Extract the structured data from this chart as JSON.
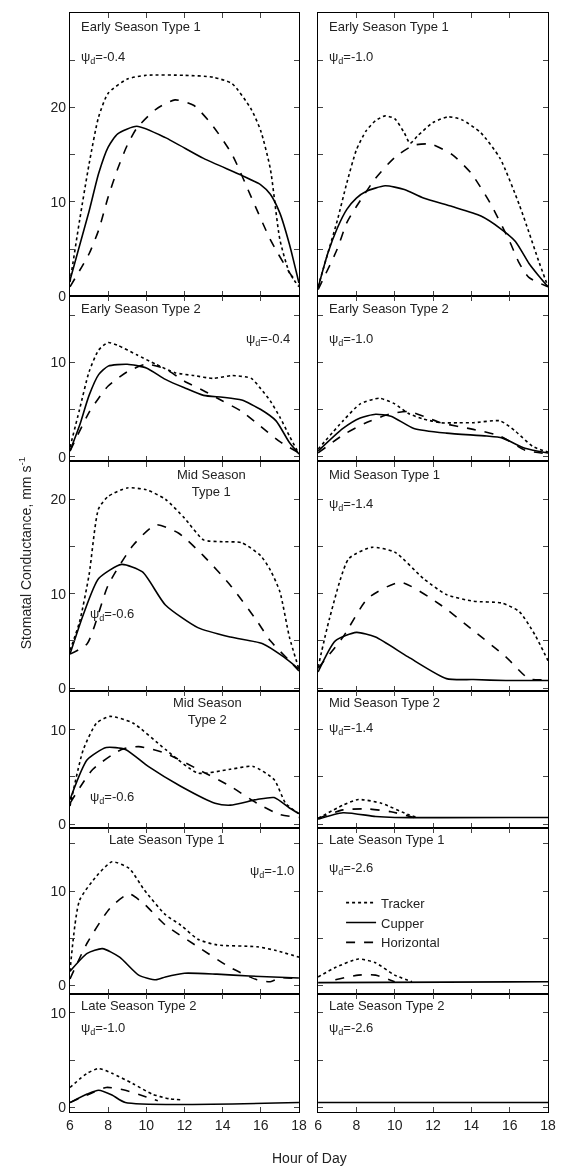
{
  "chart_data": [
    {
      "type": "line",
      "xlim": [
        6,
        18
      ],
      "xticks": [
        6,
        8,
        10,
        12,
        14,
        16,
        18
      ],
      "ylim": [
        0,
        30
      ],
      "yticks": [
        0,
        {
          "value": 5,
          "label": null
        },
        10,
        {
          "value": 15,
          "label": null
        },
        20,
        {
          "value": 25,
          "label": null
        }
      ],
      "tick_labels": "y",
      "annotations": [
        "Early Season Type 1",
        "ψ$_{d}$=-0.4"
      ],
      "series": [
        {
          "color": "#000000",
          "line_style": "dotted",
          "x": [
            6,
            6.5,
            7,
            7.5,
            8,
            9,
            10,
            12,
            13.5,
            14.5,
            15.5,
            16,
            16.5,
            17,
            17.5,
            18
          ],
          "values": [
            1.5,
            8,
            14,
            19,
            21.5,
            23,
            23.4,
            23.4,
            23.2,
            22.5,
            19.8,
            17.5,
            13.5,
            6,
            2.5,
            1
          ]
        },
        {
          "color": "#000000",
          "line_style": "solid",
          "x": [
            6,
            7,
            7.5,
            8,
            8.5,
            9.5,
            11,
            13,
            15,
            16,
            16.5,
            17,
            17.5,
            18
          ],
          "values": [
            1.7,
            9,
            13,
            15.8,
            17.2,
            18,
            16.8,
            14.6,
            12.8,
            11.8,
            10.8,
            8.8,
            5.5,
            1.4
          ]
        },
        {
          "color": "#000000",
          "line_style": "dashed",
          "x": [
            6,
            7,
            7.5,
            8,
            8.5,
            9,
            9.5,
            10.5,
            11.5,
            12.5,
            13.5,
            14.5,
            15.5,
            16.5,
            17.5,
            18
          ],
          "values": [
            1,
            4.5,
            7,
            10.5,
            13.5,
            16,
            17.8,
            19.8,
            20.8,
            20.2,
            18,
            15,
            10.5,
            6,
            2.5,
            1.2
          ]
        }
      ]
    },
    {
      "type": "line",
      "xlim": [
        6,
        18
      ],
      "xticks": [
        6,
        8,
        10,
        12,
        14,
        16,
        18
      ],
      "ylim": [
        0,
        30
      ],
      "yticks": [
        0,
        {
          "value": 5,
          "label": null
        },
        10,
        {
          "value": 15,
          "label": null
        },
        20,
        {
          "value": 25,
          "label": null
        }
      ],
      "tick_labels": false,
      "annotations": [
        "Early Season Type 1",
        "ψ$_{d}$=-1.0"
      ],
      "series": [
        {
          "color": "#000000",
          "line_style": "dotted",
          "x": [
            6,
            6.5,
            7,
            7.5,
            8,
            8.5,
            9,
            9.5,
            10,
            10.5,
            10.8,
            11.2,
            12,
            12.8,
            13.5,
            14.5,
            15.5,
            16.5,
            17,
            17.5,
            18
          ],
          "values": [
            1,
            4.5,
            8,
            12,
            15.5,
            17.5,
            18.6,
            19.1,
            18.8,
            17.3,
            16.2,
            17,
            18.4,
            19,
            18.7,
            17.3,
            14.6,
            9.7,
            6.8,
            3.8,
            1
          ]
        },
        {
          "color": "#000000",
          "line_style": "solid",
          "x": [
            6,
            6.5,
            7,
            7.5,
            8,
            8.5,
            9.5,
            10.5,
            11.5,
            13,
            14.5,
            15.5,
            16.3,
            17,
            17.5,
            18
          ],
          "values": [
            0.9,
            4.5,
            7.2,
            9.2,
            10.4,
            11.1,
            11.7,
            11.3,
            10.4,
            9.5,
            8.5,
            7.2,
            5.8,
            3.5,
            2.2,
            1
          ]
        },
        {
          "color": "#000000",
          "line_style": "dashed",
          "x": [
            6,
            7,
            7.5,
            8,
            9,
            10,
            11,
            11.9,
            13,
            14,
            15,
            16,
            16.5,
            17,
            18
          ],
          "values": [
            0.7,
            5,
            7.8,
            9.5,
            12.5,
            14.7,
            16,
            16.1,
            15,
            13,
            9.8,
            5.8,
            3.5,
            2,
            1
          ]
        }
      ]
    },
    {
      "type": "line",
      "xlim": [
        6,
        18
      ],
      "xticks": [
        6,
        8,
        10,
        12,
        14,
        16,
        18
      ],
      "ylim": [
        -0.5,
        17
      ],
      "yticks": [
        0,
        {
          "value": 5,
          "label": null
        },
        10,
        {
          "value": 15,
          "label": null
        }
      ],
      "tick_labels": "y",
      "annotations": [
        "Early Season Type 2",
        "ψ$_{d}$=-0.4"
      ],
      "series": [
        {
          "color": "#000000",
          "line_style": "dotted",
          "x": [
            6,
            6.5,
            7,
            7.5,
            8,
            8.5,
            9.5,
            10.5,
            11.5,
            12.5,
            13.5,
            14.5,
            15.5,
            16,
            16.5,
            17,
            17.5,
            18
          ],
          "values": [
            1,
            5,
            9,
            11.3,
            12.1,
            11.8,
            10.8,
            9.8,
            8.9,
            8.6,
            8.3,
            8.6,
            8.3,
            7.2,
            5.9,
            4.2,
            2.2,
            0.3
          ]
        },
        {
          "color": "#000000",
          "line_style": "solid",
          "x": [
            6,
            6.5,
            7,
            7.5,
            8,
            9,
            10,
            11,
            12,
            13,
            14,
            15,
            16,
            16.8,
            17.5,
            18
          ],
          "values": [
            0.6,
            3.3,
            6.5,
            8.7,
            9.6,
            9.8,
            9.4,
            8.2,
            7.3,
            6.5,
            6.3,
            6,
            5,
            3.8,
            1.5,
            0.3
          ]
        },
        {
          "color": "#000000",
          "line_style": "dashed",
          "x": [
            6,
            7,
            7.5,
            8,
            9,
            10,
            11,
            12,
            13,
            14,
            15,
            16,
            17,
            18
          ],
          "values": [
            0.6,
            4.7,
            6.2,
            7.5,
            9,
            9.8,
            9.3,
            8,
            7,
            5.9,
            4.8,
            3.2,
            1.6,
            0.4
          ]
        }
      ]
    },
    {
      "type": "line",
      "xlim": [
        6,
        18
      ],
      "xticks": [
        6,
        8,
        10,
        12,
        14,
        16,
        18
      ],
      "ylim": [
        -0.5,
        17
      ],
      "yticks": [
        0,
        {
          "value": 5,
          "label": null
        },
        10,
        {
          "value": 15,
          "label": null
        }
      ],
      "tick_labels": false,
      "annotations": [
        "Early Season Type 2",
        "ψ$_{d}$=-1.0"
      ],
      "series": [
        {
          "color": "#000000",
          "line_style": "dotted",
          "x": [
            6,
            7.3,
            8.2,
            9.2,
            10,
            10.7,
            11.5,
            12.4,
            13.3,
            14.1,
            15.5,
            16.3,
            17.2,
            18
          ],
          "values": [
            0.8,
            3.8,
            5.6,
            6.2,
            5.6,
            4.6,
            4,
            3.6,
            3.6,
            3.6,
            3.8,
            2.7,
            1.1,
            0.5
          ]
        },
        {
          "color": "#000000",
          "line_style": "solid",
          "x": [
            6,
            7.3,
            8.2,
            9,
            9.8,
            11,
            12.7,
            14.8,
            15.6,
            16.8,
            18
          ],
          "values": [
            0.6,
            3,
            4.1,
            4.5,
            4.3,
            3,
            2.5,
            2.2,
            2,
            0.9,
            0.4
          ]
        },
        {
          "color": "#000000",
          "line_style": "dashed",
          "x": [
            6,
            7.3,
            8.5,
            9.7,
            10.7,
            11.5,
            12.4,
            14.1,
            15.5,
            16.8,
            18
          ],
          "values": [
            0.4,
            2.3,
            3.6,
            4.5,
            4.8,
            4.3,
            3.6,
            2.9,
            2.2,
            0.7,
            0.3
          ]
        }
      ]
    },
    {
      "type": "line",
      "xlim": [
        6,
        18
      ],
      "xticks": [
        6,
        8,
        10,
        12,
        14,
        16,
        18
      ],
      "ylim": [
        -0.3,
        24
      ],
      "yticks": [
        0,
        {
          "value": 5,
          "label": null
        },
        10,
        {
          "value": 15,
          "label": null
        },
        20
      ],
      "tick_labels": "y",
      "ylabel": "Stomatal Conductance, mm s$^{-1}$",
      "annotations": [
        "Mid Season\nType 1",
        "ψ$_{d}$=-0.6"
      ],
      "series": [
        {
          "color": "#000000",
          "line_style": "dotted",
          "x": [
            6,
            6.5,
            7,
            7.5,
            8,
            9,
            10,
            11,
            12,
            13,
            14,
            15,
            16,
            16.5,
            17,
            17.5,
            18
          ],
          "values": [
            4,
            7,
            12,
            19,
            20.3,
            21.2,
            21,
            20,
            18,
            15.7,
            15.5,
            15.4,
            14,
            12.5,
            10.2,
            5.4,
            2
          ]
        },
        {
          "color": "#000000",
          "line_style": "solid",
          "x": [
            6,
            6.7,
            7.5,
            8.7,
            9.8,
            11,
            12.7,
            14.4,
            16.1,
            17.2,
            18
          ],
          "values": [
            3.6,
            7.8,
            11.6,
            13.1,
            12.3,
            8.8,
            6.4,
            5.4,
            4.7,
            3.3,
            2
          ]
        },
        {
          "color": "#000000",
          "line_style": "dashed",
          "x": [
            6,
            6.9,
            8,
            9.3,
            10.5,
            11.7,
            13,
            14.4,
            15.8,
            16.5,
            17.5,
            18
          ],
          "values": [
            3.6,
            4.7,
            10.9,
            15.1,
            17.3,
            16.4,
            14,
            10.9,
            7.1,
            5,
            2.9,
            1.8
          ]
        }
      ]
    },
    {
      "type": "line",
      "xlim": [
        6,
        18
      ],
      "xticks": [
        6,
        8,
        10,
        12,
        14,
        16,
        18
      ],
      "ylim": [
        -0.3,
        24
      ],
      "yticks": [
        0,
        {
          "value": 5,
          "label": null
        },
        10,
        {
          "value": 15,
          "label": null
        },
        20
      ],
      "tick_labels": false,
      "annotations": [
        "Mid Season Type 1",
        "ψ$_{d}$=-1.4"
      ],
      "series": [
        {
          "color": "#000000",
          "line_style": "dotted",
          "x": [
            6,
            6.6,
            7.6,
            8.8,
            10,
            11.5,
            12.7,
            14.1,
            15.6,
            16.5,
            17.3,
            18
          ],
          "values": [
            2.2,
            7.4,
            13.7,
            14.9,
            14.4,
            11.6,
            9.9,
            9.2,
            9,
            8.1,
            5.7,
            2.9
          ]
        },
        {
          "color": "#000000",
          "line_style": "solid",
          "x": [
            6,
            6.9,
            8,
            9,
            10.7,
            12.7,
            14.1,
            15.8,
            18
          ],
          "values": [
            1.7,
            5,
            5.9,
            5.4,
            3.3,
            1,
            0.9,
            0.8,
            0.8
          ]
        },
        {
          "color": "#000000",
          "line_style": "dashed",
          "x": [
            6,
            7.3,
            8.6,
            10.3,
            12.4,
            14.1,
            15.8,
            17,
            18
          ],
          "values": [
            2.1,
            5.4,
            9.5,
            11.2,
            8.8,
            6.1,
            3.3,
            1,
            0.9
          ]
        }
      ]
    },
    {
      "type": "line",
      "xlim": [
        6,
        18
      ],
      "xticks": [
        6,
        8,
        10,
        12,
        14,
        16,
        18
      ],
      "ylim": [
        -0.4,
        14.1
      ],
      "yticks": [
        0,
        {
          "value": 5,
          "label": null
        },
        10
      ],
      "tick_labels": "y",
      "annotations": [
        "Mid Season\nType 2",
        "ψ$_{d}$=-0.6"
      ],
      "series": [
        {
          "color": "#000000",
          "line_style": "dotted",
          "x": [
            6,
            6.7,
            7.4,
            8.1,
            9.3,
            11,
            12.7,
            14.4,
            15.6,
            16.7,
            17.3,
            18
          ],
          "values": [
            1.9,
            7.9,
            10.7,
            11.4,
            10.7,
            7.9,
            5.4,
            5.8,
            6.1,
            4.7,
            2.2,
            1.1
          ]
        },
        {
          "color": "#000000",
          "line_style": "solid",
          "x": [
            6,
            6.9,
            7.9,
            8.9,
            10.1,
            11.8,
            13.6,
            14.4,
            15.8,
            16.7,
            17.5,
            18
          ],
          "values": [
            2.6,
            6.8,
            8.1,
            7.9,
            6.1,
            4,
            2.2,
            2,
            2.6,
            2.8,
            1.7,
            1.1
          ]
        },
        {
          "color": "#000000",
          "line_style": "dashed",
          "x": [
            6,
            7.2,
            8.7,
            9.6,
            11,
            12.7,
            14.4,
            15.8,
            17,
            18
          ],
          "values": [
            2.2,
            5.8,
            7.9,
            8.2,
            7.5,
            5.8,
            4,
            2.2,
            1,
            0.7
          ]
        }
      ]
    },
    {
      "type": "line",
      "xlim": [
        6,
        18
      ],
      "xticks": [
        6,
        8,
        10,
        12,
        14,
        16,
        18
      ],
      "ylim": [
        -0.4,
        14.1
      ],
      "yticks": [
        0,
        {
          "value": 5,
          "label": null
        },
        10
      ],
      "tick_labels": false,
      "annotations": [
        "Mid Season Type 2",
        "ψ$_{d}$=-1.4"
      ],
      "series": [
        {
          "color": "#000000",
          "line_style": "dotted",
          "x": [
            6,
            7.3,
            8.1,
            9.3,
            10.7,
            11.2
          ],
          "values": [
            0.6,
            2,
            2.6,
            2.2,
            1,
            0.7
          ]
        },
        {
          "color": "#000000",
          "line_style": "solid",
          "x": [
            6,
            7.3,
            9,
            10,
            18
          ],
          "values": [
            0.5,
            1.2,
            0.8,
            0.7,
            0.7
          ]
        },
        {
          "color": "#000000",
          "line_style": "dashed",
          "x": [
            6,
            7.3,
            8.6,
            9.8,
            11
          ],
          "values": [
            0.6,
            1.5,
            1.6,
            1.3,
            0.7
          ]
        }
      ]
    },
    {
      "type": "line",
      "xlim": [
        6,
        18
      ],
      "xticks": [
        6,
        8,
        10,
        12,
        14,
        16,
        18
      ],
      "ylim": [
        -0.9,
        16.7
      ],
      "yticks": [
        0,
        {
          "value": 5,
          "label": null
        },
        10,
        {
          "value": 15,
          "label": null
        }
      ],
      "tick_labels": "y",
      "annotations": [
        "Late Season Type 1",
        "ψ$_{d}$=-1.0"
      ],
      "series": [
        {
          "color": "#000000",
          "line_style": "dotted",
          "x": [
            6,
            6.5,
            7.4,
            8.2,
            9.1,
            9.9,
            11,
            11.8,
            12.7,
            13.7,
            15.8,
            16.8,
            18
          ],
          "values": [
            1.5,
            9,
            11.6,
            13.1,
            12.4,
            10.1,
            7.5,
            6.4,
            4.9,
            4.3,
            4.1,
            3.7,
            3
          ]
        },
        {
          "color": "#000000",
          "line_style": "solid",
          "x": [
            6,
            6.9,
            7.7,
            8.6,
            9.6,
            10.5,
            11,
            12,
            13.7,
            15.4,
            18
          ],
          "values": [
            1.5,
            3.4,
            3.9,
            3,
            1.1,
            0.6,
            0.9,
            1.3,
            1.2,
            1,
            0.8
          ]
        },
        {
          "color": "#000000",
          "line_style": "dashed",
          "x": [
            6,
            6.9,
            8.1,
            9.1,
            9.9,
            11,
            12.7,
            14.4,
            15.8,
            16.5,
            17,
            18
          ],
          "values": [
            0.7,
            4.5,
            8.2,
            9.7,
            8.6,
            6.4,
            4.1,
            1.9,
            0.6,
            0.4,
            0.8,
            0.7
          ]
        }
      ]
    },
    {
      "type": "line",
      "xlim": [
        6,
        18
      ],
      "xticks": [
        6,
        8,
        10,
        12,
        14,
        16,
        18
      ],
      "ylim": [
        -0.9,
        16.7
      ],
      "yticks": [
        0,
        {
          "value": 5,
          "label": null
        },
        10,
        {
          "value": 15,
          "label": null
        }
      ],
      "tick_labels": false,
      "legend": "left",
      "annotations": [
        "Late Season Type 1",
        "ψ$_{d}$=-2.6"
      ],
      "series": [
        {
          "name": "Tracker",
          "color": "#000000",
          "line_style": "dotted",
          "x": [
            6,
            6.9,
            8.1,
            9,
            10,
            10.9
          ],
          "values": [
            0.9,
            1.9,
            2.8,
            2.4,
            1.1,
            0.4
          ]
        },
        {
          "name": "Cupper",
          "color": "#000000",
          "line_style": "solid",
          "x": [
            6,
            18
          ],
          "values": [
            0.3,
            0.4
          ]
        },
        {
          "name": "Horizontal",
          "color": "#000000",
          "line_style": "dashed",
          "x": [
            6.9,
            8.1,
            9,
            10
          ],
          "values": [
            0.6,
            1.1,
            1.1,
            0.4
          ]
        }
      ]
    },
    {
      "type": "line",
      "xlim": [
        6,
        18
      ],
      "xticks": [
        6,
        8,
        10,
        12,
        14,
        16,
        18
      ],
      "ylim": [
        -0.5,
        12
      ],
      "yticks": [
        0,
        {
          "value": 5,
          "label": null
        },
        10
      ],
      "xlabel": "Hour of Day",
      "annotations": [
        "Late Season Type 2",
        "ψ$_{d}$=-1.0"
      ],
      "series": [
        {
          "color": "#000000",
          "line_style": "dotted",
          "x": [
            6,
            6.9,
            7.5,
            8.2,
            9.3,
            10.3,
            11.2,
            11.8
          ],
          "values": [
            2.1,
            3.6,
            4.1,
            3.6,
            2.5,
            1.4,
            0.9,
            0.8
          ]
        },
        {
          "color": "#000000",
          "line_style": "solid",
          "x": [
            6,
            6.9,
            7.5,
            8.2,
            8.9,
            18
          ],
          "values": [
            0.5,
            1.4,
            1.8,
            1.3,
            0.5,
            0.5
          ]
        },
        {
          "color": "#000000",
          "line_style": "dashed",
          "x": [
            6,
            6.9,
            7.9,
            8.9,
            10,
            10.6
          ],
          "values": [
            0.5,
            1.3,
            2.1,
            1.8,
            1.1,
            0.7
          ]
        }
      ]
    },
    {
      "type": "line",
      "xlim": [
        6,
        18
      ],
      "xticks": [
        6,
        8,
        10,
        12,
        14,
        16,
        18
      ],
      "ylim": [
        -0.5,
        12
      ],
      "yticks": [
        0,
        {
          "value": 5,
          "label": null
        },
        10
      ],
      "tick_labels": "x",
      "annotations": [
        "Late Season Type 2",
        "ψ$_{d}$=-2.6"
      ],
      "series": [
        {
          "color": "#000000",
          "line_style": "solid",
          "x": [
            6,
            18
          ],
          "values": [
            0.5,
            0.5
          ]
        }
      ]
    }
  ]
}
